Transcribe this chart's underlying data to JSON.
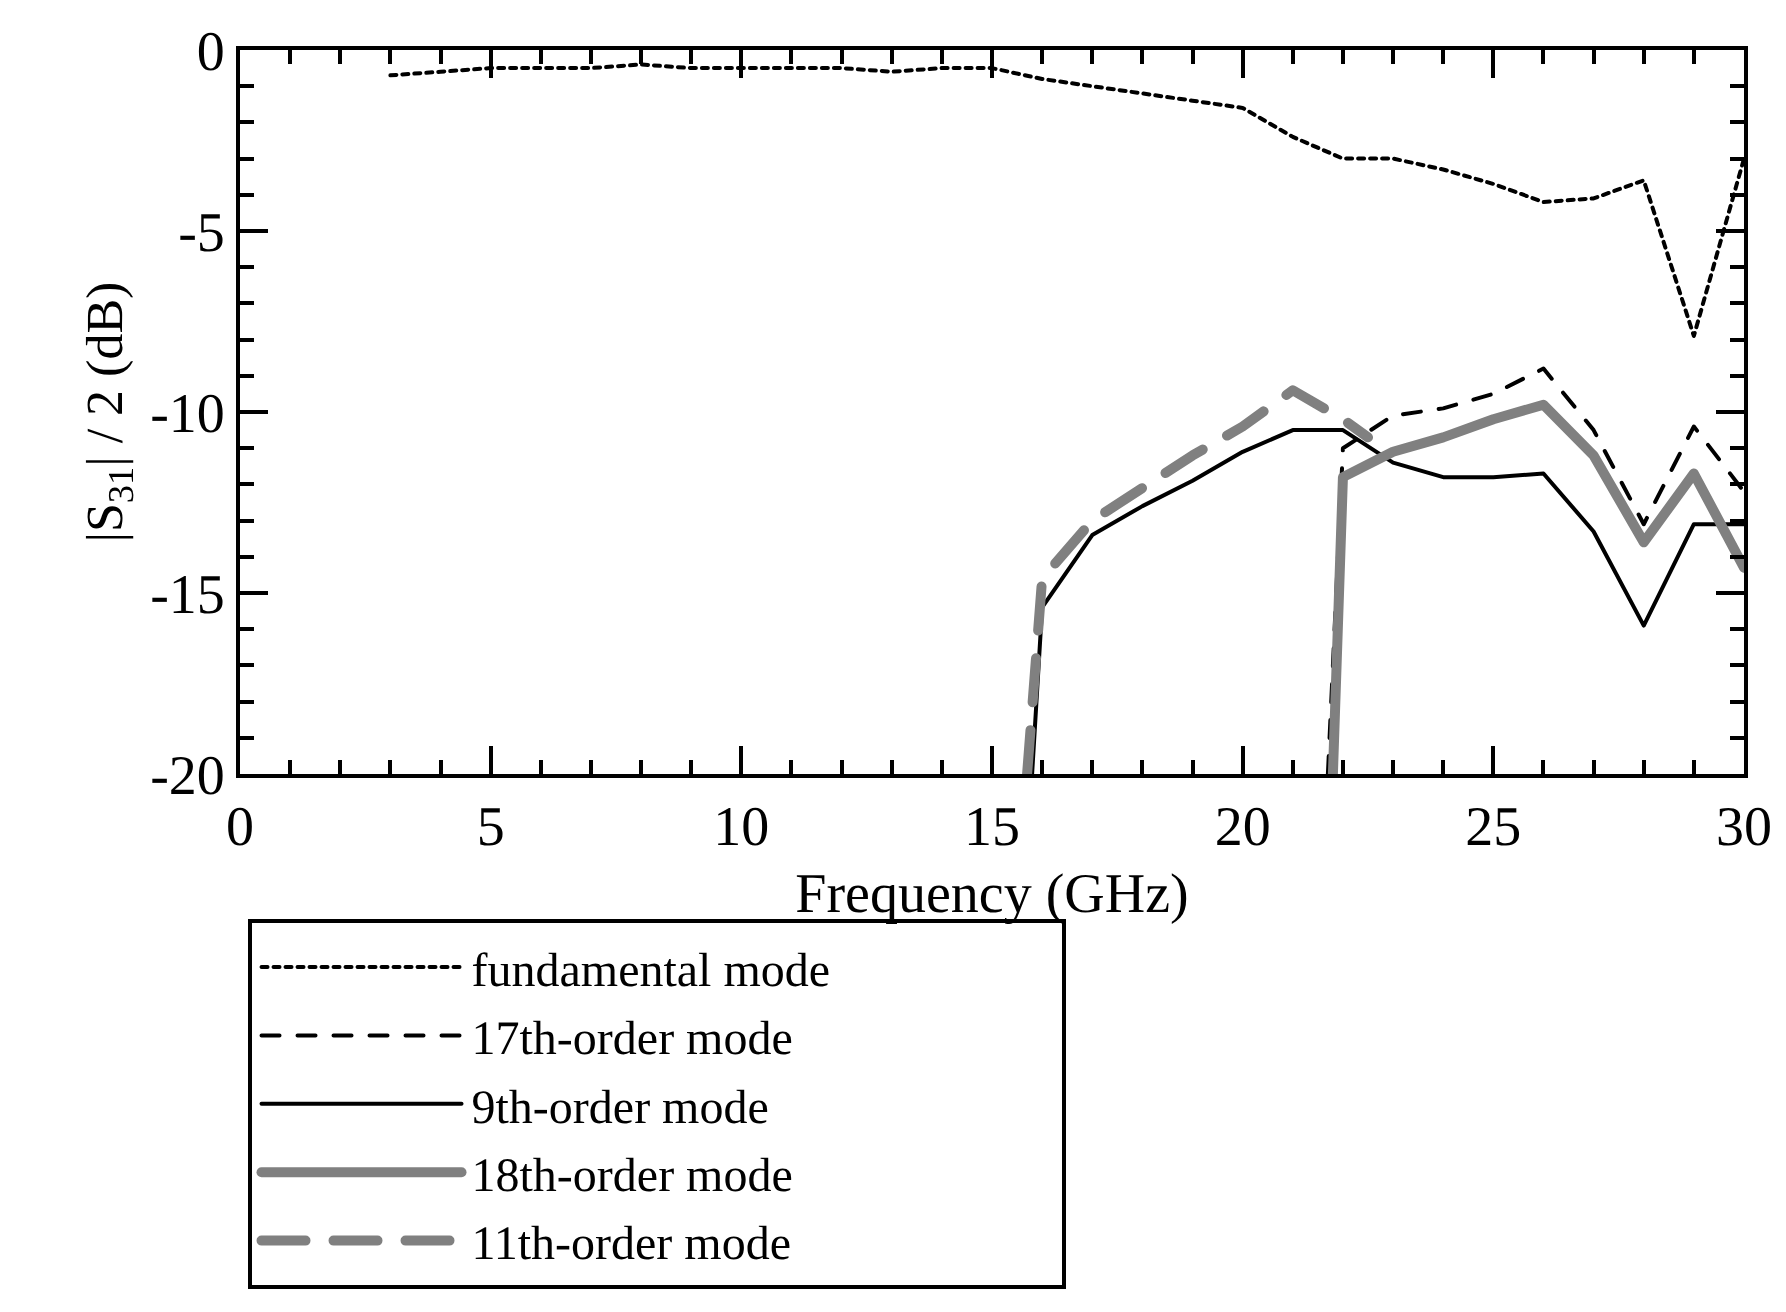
{
  "chart_data": {
    "type": "line",
    "xlabel": "Frequency (GHz)",
    "ylabel": "|S$_{31}$| / 2 (dB)",
    "xlim": [
      0,
      30
    ],
    "xticks": [
      0,
      5,
      10,
      15,
      20,
      25,
      30
    ],
    "ylim": [
      -20,
      0
    ],
    "yticks": [
      -20,
      -15,
      -10,
      -5,
      0
    ],
    "grid": false,
    "legend": "bottom",
    "marker": "none",
    "series": [
      {
        "name": "fundamental mode",
        "color": "#000000",
        "line_style": "dotted",
        "x": [
          3,
          4,
          5,
          6,
          7,
          8,
          9,
          10,
          11,
          12,
          13,
          14,
          15,
          16,
          17,
          18,
          19,
          20,
          21,
          22,
          23,
          24,
          25,
          26,
          27,
          28,
          29,
          30
        ],
        "values": [
          -0.7,
          -0.6,
          -0.5,
          -0.5,
          -0.5,
          -0.4,
          -0.5,
          -0.5,
          -0.5,
          -0.5,
          -0.6,
          -0.5,
          -0.5,
          -0.8,
          -1.0,
          -1.2,
          -1.4,
          -1.6,
          -2.4,
          -3.0,
          -3.0,
          -3.3,
          -3.7,
          -4.2,
          -4.1,
          -3.6,
          -7.9,
          -3.0
        ]
      },
      {
        "name": "9th-order mode",
        "color": "#000000",
        "line_style": "solid",
        "x": [
          15.8,
          16,
          17,
          18,
          19,
          20,
          21,
          22,
          23,
          24,
          25,
          26,
          27,
          28,
          29,
          30
        ],
        "values": [
          -20,
          -15.4,
          -13.4,
          -12.6,
          -11.9,
          -11.1,
          -10.5,
          -10.5,
          -11.4,
          -11.8,
          -11.8,
          -11.7,
          -13.3,
          -15.9,
          -13.1,
          -13.1
        ]
      },
      {
        "name": "11th-order mode",
        "color": "#808080",
        "line_style": "dashed",
        "x": [
          15.7,
          16,
          17,
          18,
          19,
          20,
          21,
          22,
          22.5
        ],
        "values": [
          -20,
          -14.6,
          -13.0,
          -12.1,
          -11.2,
          -10.4,
          -9.4,
          -10.2,
          -10.7
        ]
      },
      {
        "name": "17th-order mode",
        "color": "#000000",
        "line_style": "dashed",
        "x": [
          21.7,
          22,
          23,
          24,
          25,
          26,
          27,
          28,
          29,
          30
        ],
        "values": [
          -20,
          -11.0,
          -10.1,
          -9.9,
          -9.5,
          -8.8,
          -10.5,
          -13.1,
          -10.4,
          -12.2
        ]
      },
      {
        "name": "18th-order mode",
        "color": "#808080",
        "line_style": "solid",
        "x": [
          21.8,
          22,
          23,
          24,
          25,
          26,
          27,
          28,
          29,
          30
        ],
        "values": [
          -20,
          -11.8,
          -11.1,
          -10.7,
          -10.2,
          -9.8,
          -11.2,
          -13.6,
          -11.7,
          -14.3
        ]
      }
    ]
  }
}
